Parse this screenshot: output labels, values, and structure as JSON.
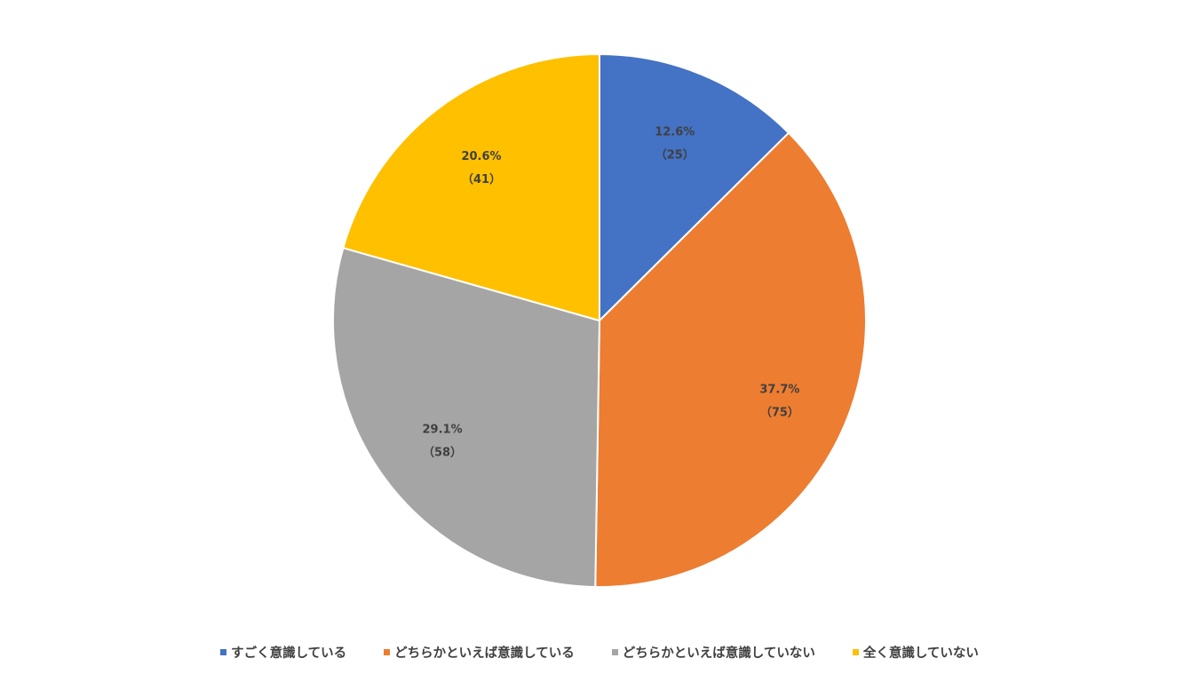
{
  "chart_data": {
    "type": "pie",
    "categories": [
      "すごく意識している",
      "どちらかといえば意識している",
      "どちらかといえば意識していない",
      "全く意識していない"
    ],
    "values": [
      25,
      75,
      58,
      41
    ],
    "percent_labels": [
      "12.6%",
      "37.7%",
      "29.1%",
      "20.6%"
    ],
    "count_labels": [
      "（25）",
      "（75）",
      "（58）",
      "（41）"
    ],
    "colors": [
      "#4472C4",
      "#ED7D31",
      "#A5A5A5",
      "#FFC000"
    ],
    "legend_position": "bottom",
    "start_angle": "12 o'clock, clockwise"
  }
}
